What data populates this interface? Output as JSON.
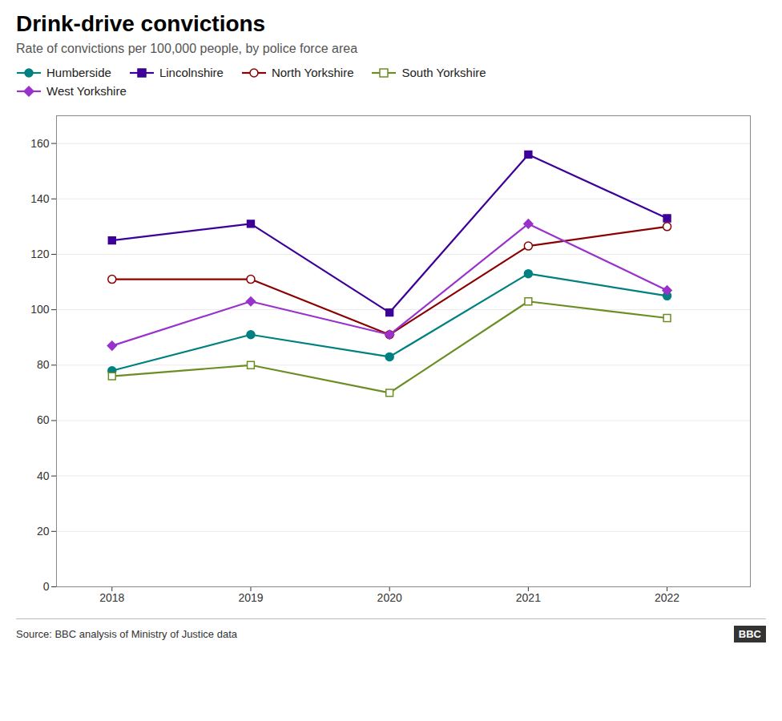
{
  "chart_data": {
    "type": "line",
    "title": "Drink-drive convictions",
    "subtitle": "Rate of convictions per 100,000 people, by police force area",
    "source": "Source: BBC analysis of Ministry of Justice data",
    "annotations": [
      "BBC"
    ],
    "x": [
      2018,
      2019,
      2020,
      2021,
      2022
    ],
    "xlim": [
      2017.6,
      2022.6
    ],
    "xticks": [
      2018,
      2019,
      2020,
      2021,
      2022
    ],
    "ylim": [
      0,
      170
    ],
    "yticks": [
      0,
      20,
      40,
      60,
      80,
      100,
      120,
      140,
      160
    ],
    "grid": true,
    "legend": "top",
    "series": [
      {
        "name": "Humberside",
        "color": "#008080",
        "marker": "circle",
        "values": [
          78,
          91,
          83,
          113,
          105
        ]
      },
      {
        "name": "Lincolnshire",
        "color": "#3d0099",
        "marker": "square",
        "values": [
          125,
          131,
          99,
          156,
          133
        ]
      },
      {
        "name": "North Yorkshire",
        "color": "#8b0000",
        "marker": "circle-open",
        "values": [
          111,
          111,
          91,
          123,
          130
        ]
      },
      {
        "name": "South Yorkshire",
        "color": "#6b8e23",
        "marker": "square-open",
        "values": [
          76,
          80,
          70,
          103,
          97
        ]
      },
      {
        "name": "West Yorkshire",
        "color": "#9932cc",
        "marker": "diamond",
        "values": [
          87,
          103,
          91,
          131,
          107
        ]
      }
    ]
  }
}
